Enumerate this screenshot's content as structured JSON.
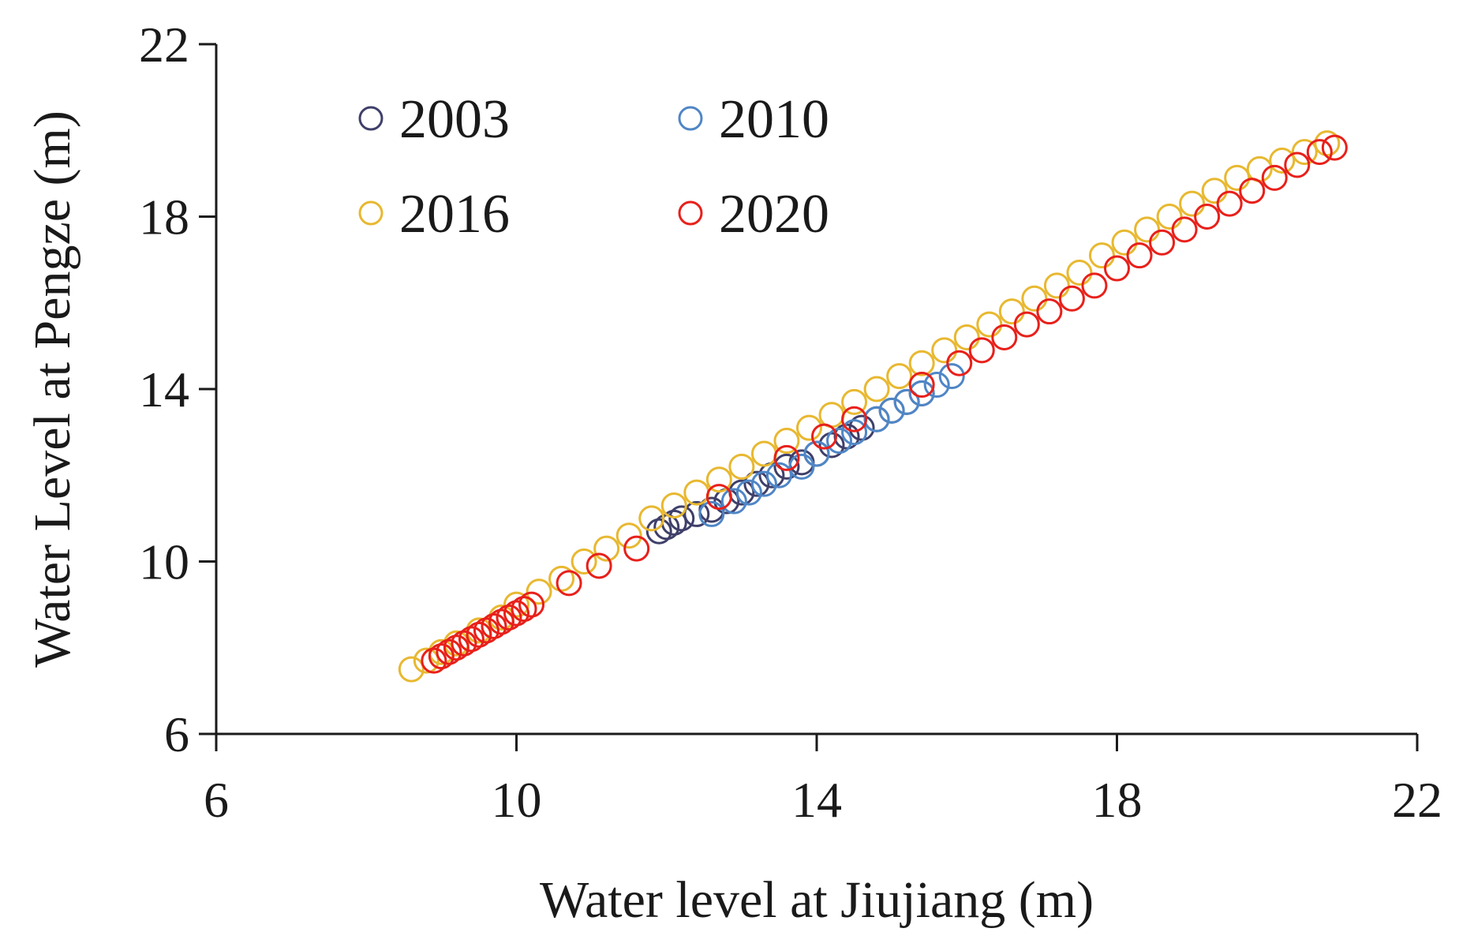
{
  "chart_data": {
    "type": "scatter",
    "title": "",
    "xlabel": "Water level at Jiujiang (m)",
    "ylabel": "Water Level at Pengze (m)",
    "xlim": [
      6,
      22
    ],
    "ylim": [
      6,
      22
    ],
    "xticks": [
      "6",
      "10",
      "14",
      "18",
      "22"
    ],
    "yticks": [
      "6",
      "10",
      "14",
      "18",
      "22"
    ],
    "grid": false,
    "legend_position": "top-left",
    "series": [
      {
        "name": "2003",
        "color": "#3f3f6a",
        "x": [
          11.9,
          12.0,
          12.1,
          12.2,
          12.4,
          12.6,
          12.8,
          13.0,
          13.2,
          13.4,
          13.6,
          13.8,
          14.0,
          14.2,
          14.4,
          14.6,
          14.8,
          15.0,
          15.2,
          15.4
        ],
        "y": [
          10.7,
          10.8,
          10.9,
          11.0,
          11.1,
          11.2,
          11.4,
          11.6,
          11.8,
          12.0,
          12.2,
          12.3,
          12.5,
          12.7,
          12.9,
          13.1,
          13.3,
          13.5,
          13.7,
          13.9
        ]
      },
      {
        "name": "2010",
        "color": "#4f86c6",
        "x": [
          12.6,
          12.9,
          13.1,
          13.3,
          13.5,
          13.8,
          14.0,
          14.3,
          14.5,
          14.8,
          15.0,
          15.2,
          15.4,
          15.6,
          15.8
        ],
        "y": [
          11.1,
          11.4,
          11.6,
          11.8,
          12.0,
          12.2,
          12.5,
          12.8,
          13.0,
          13.3,
          13.5,
          13.7,
          13.9,
          14.1,
          14.3
        ]
      },
      {
        "name": "2016",
        "color": "#e8b830",
        "x": [
          8.6,
          8.8,
          9.0,
          9.2,
          9.5,
          9.8,
          10.0,
          10.3,
          10.6,
          10.9,
          11.2,
          11.5,
          11.8,
          12.1,
          12.4,
          12.7,
          13.0,
          13.3,
          13.6,
          13.9,
          14.2,
          14.5,
          14.8,
          15.1,
          15.4,
          15.7,
          16.0,
          16.3,
          16.6,
          16.9,
          17.2,
          17.5,
          17.8,
          18.1,
          18.4,
          18.7,
          19.0,
          19.3,
          19.6,
          19.9,
          20.2,
          20.5,
          20.8
        ],
        "y": [
          7.5,
          7.7,
          7.9,
          8.1,
          8.4,
          8.7,
          9.0,
          9.3,
          9.6,
          10.0,
          10.3,
          10.6,
          11.0,
          11.3,
          11.6,
          11.9,
          12.2,
          12.5,
          12.8,
          13.1,
          13.4,
          13.7,
          14.0,
          14.3,
          14.6,
          14.9,
          15.2,
          15.5,
          15.8,
          16.1,
          16.4,
          16.7,
          17.1,
          17.4,
          17.7,
          18.0,
          18.3,
          18.6,
          18.9,
          19.1,
          19.3,
          19.5,
          19.7
        ]
      },
      {
        "name": "2020",
        "color": "#e8201a",
        "x": [
          8.9,
          9.0,
          9.1,
          9.2,
          9.3,
          9.4,
          9.5,
          9.6,
          9.7,
          9.8,
          9.9,
          10.0,
          10.1,
          10.2,
          10.7,
          11.1,
          11.6,
          12.7,
          13.6,
          14.1,
          14.5,
          15.4,
          15.9,
          16.2,
          16.5,
          16.8,
          17.1,
          17.4,
          17.7,
          18.0,
          18.3,
          18.6,
          18.9,
          19.2,
          19.5,
          19.8,
          20.1,
          20.4,
          20.7,
          20.9
        ],
        "y": [
          7.7,
          7.8,
          7.9,
          8.0,
          8.1,
          8.2,
          8.3,
          8.4,
          8.5,
          8.6,
          8.7,
          8.8,
          8.9,
          9.0,
          9.5,
          9.9,
          10.3,
          11.5,
          12.4,
          12.9,
          13.3,
          14.1,
          14.6,
          14.9,
          15.2,
          15.5,
          15.8,
          16.1,
          16.4,
          16.8,
          17.1,
          17.4,
          17.7,
          18.0,
          18.3,
          18.6,
          18.9,
          19.2,
          19.5,
          19.6
        ]
      }
    ]
  }
}
